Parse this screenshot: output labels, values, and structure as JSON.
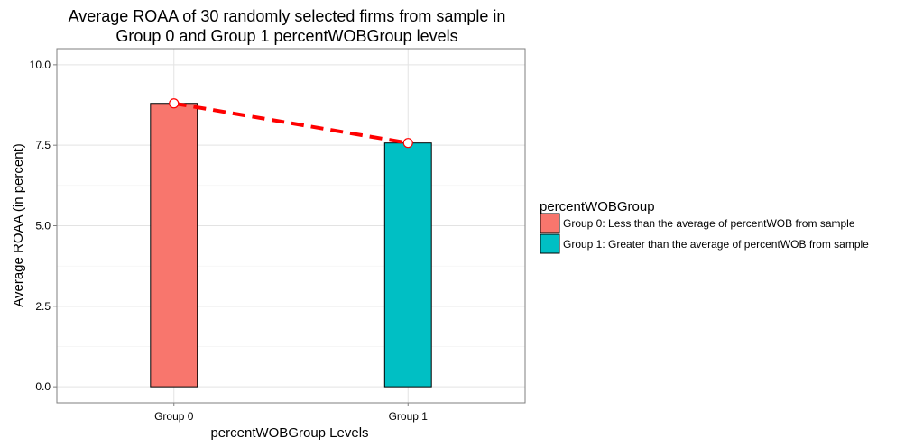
{
  "chart_data": {
    "type": "bar",
    "title": [
      "Average ROAA of 30 randomly selected firms from sample in",
      "Group 0 and Group 1 percentWOBGroup levels"
    ],
    "xlabel": "percentWOBGroup Levels",
    "ylabel": "Average ROAA (in percent)",
    "categories": [
      "Group 0",
      "Group 1"
    ],
    "values": [
      8.8,
      7.57
    ],
    "colors": [
      "#F8766D",
      "#00BFC4"
    ],
    "ylim": [
      -0.5,
      10.5
    ],
    "yticks": [
      0.0,
      2.5,
      5.0,
      7.5,
      10.0
    ],
    "ytick_labels": [
      "0.0",
      "2.5",
      "5.0",
      "7.5",
      "10.0"
    ],
    "grid": true,
    "overlay_line": {
      "style": "dashed",
      "color": "#FF0000",
      "marker": "open-circle"
    },
    "legend": {
      "title": "percentWOBGroup",
      "placement": "right",
      "entries": [
        {
          "label": "Group 0: Less than the average of percentWOB from sample",
          "color": "#F8766D"
        },
        {
          "label": "Group 1: Greater than the average of percentWOB from sample",
          "color": "#00BFC4"
        }
      ]
    }
  }
}
